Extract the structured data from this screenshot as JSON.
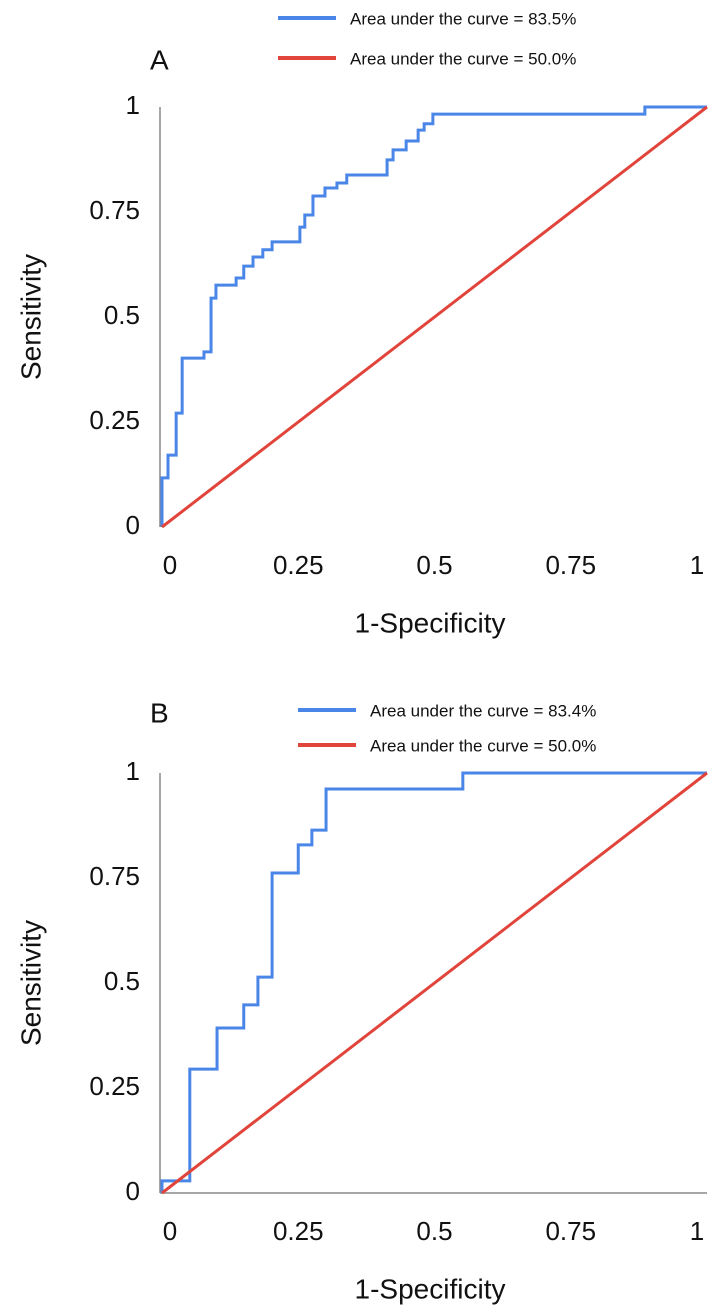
{
  "chart_data": [
    {
      "type": "line",
      "title": "A",
      "xlabel": "1-Specificity",
      "ylabel": "Sensitivity",
      "xlim": [
        0,
        1
      ],
      "ylim": [
        0,
        1
      ],
      "xticks": [
        0,
        0.25,
        0.5,
        0.75,
        1
      ],
      "yticks": [
        0,
        0.25,
        0.5,
        0.75,
        1
      ],
      "series": [
        {
          "name": "Area under the curve = 83.5%",
          "color": "#4a86e8",
          "x": [
            0,
            0,
            0.011,
            0.011,
            0.026,
            0.026,
            0.037,
            0.037,
            0.077,
            0.077,
            0.09,
            0.09,
            0.099,
            0.099,
            0.136,
            0.136,
            0.15,
            0.15,
            0.167,
            0.167,
            0.185,
            0.185,
            0.202,
            0.202,
            0.253,
            0.253,
            0.262,
            0.262,
            0.277,
            0.277,
            0.299,
            0.299,
            0.321,
            0.321,
            0.339,
            0.339,
            0.413,
            0.413,
            0.424,
            0.424,
            0.448,
            0.448,
            0.47,
            0.47,
            0.481,
            0.481,
            0.497,
            0.497,
            0.886,
            0.886,
            1
          ],
          "values": [
            0,
            0.117,
            0.117,
            0.171,
            0.171,
            0.271,
            0.271,
            0.402,
            0.402,
            0.417,
            0.417,
            0.545,
            0.545,
            0.576,
            0.576,
            0.593,
            0.593,
            0.621,
            0.621,
            0.643,
            0.643,
            0.66,
            0.66,
            0.679,
            0.679,
            0.714,
            0.714,
            0.743,
            0.743,
            0.788,
            0.788,
            0.807,
            0.807,
            0.819,
            0.819,
            0.838,
            0.838,
            0.874,
            0.874,
            0.898,
            0.898,
            0.919,
            0.919,
            0.945,
            0.945,
            0.96,
            0.96,
            0.983,
            0.983,
            1,
            1
          ]
        },
        {
          "name": "Area under the curve = 50.0%",
          "color": "#e0443a",
          "x": [
            0,
            1
          ],
          "values": [
            0,
            1
          ]
        }
      ]
    },
    {
      "type": "line",
      "title": "B",
      "xlabel": "1-Specificity",
      "ylabel": "Sensitivity",
      "xlim": [
        0,
        1
      ],
      "ylim": [
        0,
        1
      ],
      "xticks": [
        0,
        0.25,
        0.5,
        0.75,
        1
      ],
      "yticks": [
        0,
        0.25,
        0.5,
        0.75,
        1
      ],
      "series": [
        {
          "name": "Area under the curve = 83.4%",
          "color": "#4a86e8",
          "x": [
            0,
            0,
            0.051,
            0.051,
            0.101,
            0.101,
            0.15,
            0.15,
            0.176,
            0.176,
            0.202,
            0.202,
            0.25,
            0.25,
            0.275,
            0.275,
            0.301,
            0.301,
            0.552,
            0.552,
            1
          ],
          "values": [
            0,
            0.029,
            0.029,
            0.295,
            0.295,
            0.393,
            0.393,
            0.448,
            0.448,
            0.514,
            0.514,
            0.762,
            0.762,
            0.829,
            0.829,
            0.864,
            0.864,
            0.962,
            0.962,
            1,
            1
          ]
        },
        {
          "name": "Area under the curve = 50.0%",
          "color": "#e0443a",
          "x": [
            0,
            1
          ],
          "values": [
            0,
            1
          ]
        }
      ]
    }
  ]
}
